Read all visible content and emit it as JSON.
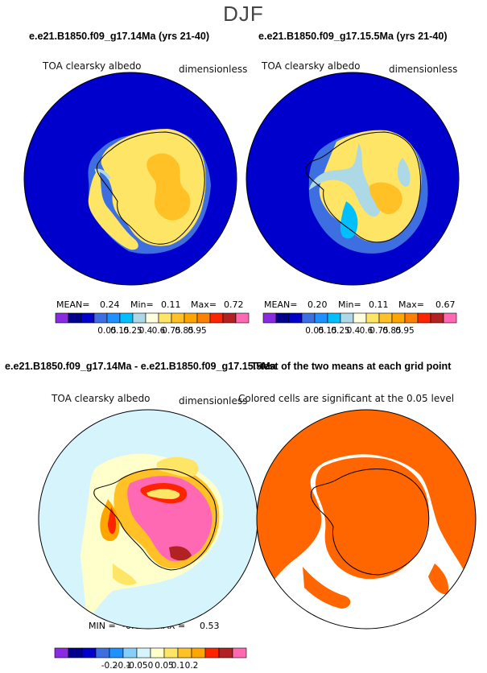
{
  "season": "DJF",
  "panels": [
    {
      "title": "e.e21.B1850.f09_g17.14Ma (yrs 21-40)",
      "variable": "TOA clearsky albedo",
      "units": "dimensionless",
      "stats": {
        "mean_label": "MEAN=",
        "mean": "0.24",
        "min_label": "Min=",
        "min": "0.11",
        "max_label": "Max=",
        "max": "0.72"
      }
    },
    {
      "title": "e.e21.B1850.f09_g17.15.5Ma (yrs 21-40)",
      "variable": "TOA clearsky albedo",
      "units": "dimensionless",
      "stats": {
        "mean_label": "MEAN=",
        "mean": "0.20",
        "min_label": "Min=",
        "min": "0.11",
        "max_label": "Max=",
        "max": "0.67"
      }
    },
    {
      "title": "e.e21.B1850.f09_g17.14Ma - e.e21.B1850.f09_g17.15.5Ma",
      "variable": "TOA clearsky albedo",
      "units": "dimensionless",
      "stats": {
        "min_label": "MIN =",
        "min": "-0.02",
        "max_label": "MAX =",
        "max": "0.53"
      }
    },
    {
      "title": "T-test of the two means at each grid point",
      "subtitle": "Colored cells are significant at the 0.05 level"
    }
  ],
  "chart_data": [
    {
      "type": "heatmap",
      "title": "e.e21.B1850.f09_g17.14Ma (yrs 21-40)",
      "variable": "TOA clearsky albedo",
      "units": "dimensionless",
      "mean": 0.24,
      "min": 0.11,
      "max": 0.72,
      "colorbar": {
        "levels": [
          "0.05",
          "0.15",
          "0.25",
          "0.4",
          "0.6",
          "0.75",
          "0.85",
          "0.95"
        ],
        "colors": [
          "#8a2be2",
          "#00008b",
          "#0000cd",
          "#3d6fe0",
          "#1e90ff",
          "#00bfff",
          "#add8e6",
          "#ffffe0",
          "#ffe566",
          "#ffc125",
          "#ffa500",
          "#ff7f00",
          "#ff2400",
          "#b22222",
          "#ff69b4"
        ]
      }
    },
    {
      "type": "heatmap",
      "title": "e.e21.B1850.f09_g17.15.5Ma (yrs 21-40)",
      "variable": "TOA clearsky albedo",
      "units": "dimensionless",
      "mean": 0.2,
      "min": 0.11,
      "max": 0.67,
      "colorbar": {
        "levels": [
          "0.05",
          "0.15",
          "0.25",
          "0.4",
          "0.6",
          "0.75",
          "0.85",
          "0.95"
        ],
        "colors": [
          "#8a2be2",
          "#00008b",
          "#0000cd",
          "#3d6fe0",
          "#1e90ff",
          "#00bfff",
          "#add8e6",
          "#ffffe0",
          "#ffe566",
          "#ffc125",
          "#ffa500",
          "#ff7f00",
          "#ff2400",
          "#b22222",
          "#ff69b4"
        ]
      }
    },
    {
      "type": "heatmap",
      "title": "e.e21.B1850.f09_g17.14Ma - e.e21.B1850.f09_g17.15.5Ma",
      "variable": "TOA clearsky albedo",
      "units": "dimensionless",
      "min": -0.02,
      "max": 0.53,
      "colorbar": {
        "levels": [
          "-0.2",
          "-0.1",
          "-0.05",
          "0",
          "0.05",
          "0.1",
          "0.2"
        ],
        "colors": [
          "#8a2be2",
          "#00008b",
          "#0000cd",
          "#3d6fe0",
          "#1e90ff",
          "#87cefa",
          "#d6f4fb",
          "#ffffcc",
          "#ffe566",
          "#ffc125",
          "#ffa500",
          "#ff2400",
          "#b22222",
          "#ff69b4"
        ]
      }
    },
    {
      "type": "heatmap",
      "title": "T-test of the two means at each grid point",
      "subtitle": "Colored cells are significant at the 0.05 level",
      "significant_color": "#ff6600"
    }
  ]
}
